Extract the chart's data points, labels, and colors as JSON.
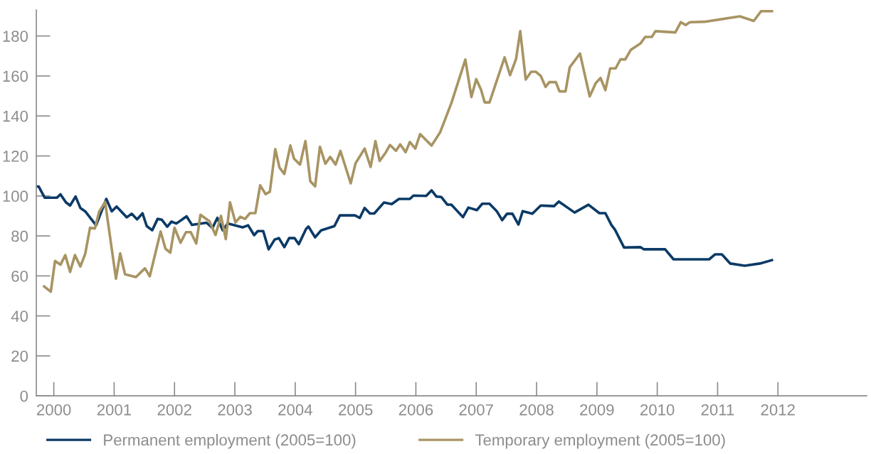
{
  "chart_data": {
    "type": "line",
    "xlim": [
      1999.71,
      2013.47
    ],
    "ylim": [
      0,
      193
    ],
    "xticks": [
      2000,
      2001,
      2002,
      2003,
      2004,
      2005,
      2006,
      2007,
      2008,
      2009,
      2010,
      2011,
      2012
    ],
    "yticks": [
      0,
      20,
      40,
      60,
      80,
      100,
      120,
      140,
      160,
      180
    ],
    "grid": false,
    "legend": "bottom",
    "marker": "none",
    "line_style": "solid",
    "series": [
      {
        "name": "Permanent employment (2005=100)",
        "color": "#0b3a66",
        "x": [
          1999.71,
          1999.75,
          1999.85,
          2000.05,
          2000.11,
          2000.2,
          2000.27,
          2000.36,
          2000.44,
          2000.52,
          2000.7,
          2000.87,
          2000.96,
          2001.04,
          2001.21,
          2001.29,
          2001.38,
          2001.47,
          2001.54,
          2001.63,
          2001.72,
          2001.79,
          2001.88,
          2001.95,
          2002.03,
          2002.2,
          2002.29,
          2002.53,
          2002.63,
          2002.71,
          2002.8,
          2002.88,
          2003.13,
          2003.22,
          2003.32,
          2003.38,
          2003.47,
          2003.56,
          2003.66,
          2003.73,
          2003.82,
          2003.9,
          2003.99,
          2004.06,
          2004.18,
          2004.22,
          2004.33,
          2004.43,
          2004.65,
          2004.74,
          2004.99,
          2005.07,
          2005.15,
          2005.24,
          2005.31,
          2005.47,
          2005.6,
          2005.72,
          2005.9,
          2005.96,
          2006.17,
          2006.26,
          2006.34,
          2006.42,
          2006.52,
          2006.59,
          2006.78,
          2006.87,
          2007.01,
          2007.1,
          2007.22,
          2007.34,
          2007.43,
          2007.51,
          2007.6,
          2007.7,
          2007.77,
          2007.93,
          2008.07,
          2008.29,
          2008.37,
          2008.63,
          2008.86,
          2009.04,
          2009.14,
          2009.24,
          2009.3,
          2009.45,
          2009.72,
          2009.78,
          2010.13,
          2010.27,
          2010.86,
          2010.96,
          2011.07,
          2011.21,
          2011.45,
          2011.7,
          2011.9
        ],
        "values": [
          104.7,
          104.7,
          99.1,
          99.1,
          100.8,
          96.8,
          95.2,
          99.7,
          94.0,
          92.3,
          85.3,
          98.5,
          92.3,
          94.7,
          89.3,
          91.1,
          88.3,
          91.3,
          84.9,
          82.8,
          88.5,
          88.1,
          84.6,
          87.2,
          86.2,
          89.8,
          85.5,
          86.6,
          84.0,
          89.0,
          82.8,
          86.2,
          84.3,
          85.3,
          80.4,
          82.4,
          82.4,
          73.3,
          78.2,
          78.9,
          74.4,
          78.9,
          78.9,
          75.9,
          83.5,
          84.7,
          79.3,
          82.8,
          84.9,
          90.3,
          90.3,
          89.0,
          94.0,
          91.2,
          91.2,
          96.7,
          95.9,
          98.5,
          98.5,
          100.2,
          100.0,
          102.8,
          99.7,
          99.5,
          95.7,
          95.6,
          89.4,
          94.2,
          92.9,
          96.1,
          96.1,
          92.4,
          87.9,
          91.1,
          91.1,
          85.7,
          92.4,
          91.1,
          95.2,
          94.9,
          97.2,
          91.7,
          95.6,
          91.4,
          91.4,
          85.5,
          83.1,
          74.2,
          74.4,
          73.3,
          73.3,
          68.3,
          68.3,
          70.8,
          70.8,
          66.2,
          65.1,
          66.2,
          67.9
        ]
      },
      {
        "name": "Temporary employment (2005=100)",
        "color": "#a89463",
        "x": [
          1999.84,
          1999.95,
          2000.02,
          2000.11,
          2000.19,
          2000.27,
          2000.35,
          2000.44,
          2000.52,
          2000.6,
          2000.68,
          2000.75,
          2000.85,
          2001.03,
          2001.1,
          2001.18,
          2001.36,
          2001.51,
          2001.59,
          2001.77,
          2001.85,
          2001.93,
          2002.0,
          2002.1,
          2002.19,
          2002.27,
          2002.36,
          2002.43,
          2002.58,
          2002.68,
          2002.77,
          2002.85,
          2002.92,
          2003.01,
          2003.09,
          2003.17,
          2003.25,
          2003.34,
          2003.42,
          2003.51,
          2003.58,
          2003.67,
          2003.74,
          2003.82,
          2003.92,
          2003.98,
          2004.08,
          2004.17,
          2004.25,
          2004.33,
          2004.41,
          2004.5,
          2004.58,
          2004.67,
          2004.75,
          2004.92,
          2005.0,
          2005.15,
          2005.25,
          2005.33,
          2005.4,
          2005.5,
          2005.57,
          2005.67,
          2005.74,
          2005.83,
          2005.9,
          2005.99,
          2006.07,
          2006.26,
          2006.4,
          2006.5,
          2006.59,
          2006.82,
          2006.92,
          2007.0,
          2007.08,
          2007.14,
          2007.22,
          2007.47,
          2007.56,
          2007.66,
          2007.73,
          2007.82,
          2007.91,
          2007.99,
          2008.07,
          2008.15,
          2008.21,
          2008.32,
          2008.38,
          2008.48,
          2008.55,
          2008.72,
          2008.88,
          2008.98,
          2009.06,
          2009.14,
          2009.22,
          2009.31,
          2009.39,
          2009.47,
          2009.56,
          2009.72,
          2009.8,
          2009.91,
          2009.97,
          2010.3,
          2010.39,
          2010.47,
          2010.54,
          2010.78,
          2011.37,
          2011.6,
          2011.72,
          2011.9
        ],
        "values": [
          54.7,
          52.1,
          67.5,
          65.6,
          70.4,
          62.0,
          70.4,
          64.7,
          71.0,
          84.1,
          83.7,
          92.0,
          97.0,
          58.6,
          71.3,
          60.8,
          59.4,
          63.8,
          59.8,
          82.2,
          73.6,
          71.6,
          84.1,
          76.6,
          81.9,
          81.9,
          76.2,
          90.6,
          87.3,
          80.5,
          90.0,
          78.4,
          96.8,
          86.7,
          89.6,
          88.5,
          91.4,
          91.4,
          105.3,
          100.9,
          102.1,
          123.4,
          114.2,
          111.0,
          125.2,
          118.7,
          115.7,
          127.4,
          107.4,
          104.8,
          124.6,
          116.1,
          119.5,
          115.7,
          122.5,
          106.3,
          116.3,
          123.7,
          114.5,
          127.4,
          117.5,
          121.7,
          125.5,
          122.6,
          125.8,
          121.9,
          127.0,
          123.7,
          130.9,
          125.2,
          131.7,
          139.5,
          146.6,
          168.2,
          149.5,
          158.4,
          153.1,
          146.8,
          146.8,
          169.3,
          160.4,
          168.5,
          182.4,
          158.2,
          162.1,
          162.1,
          160.0,
          154.5,
          156.9,
          156.9,
          152.3,
          152.3,
          164.4,
          171.2,
          149.8,
          156.4,
          159.0,
          152.9,
          163.8,
          163.8,
          168.3,
          168.3,
          173.0,
          176.2,
          179.5,
          179.5,
          182.4,
          181.8,
          186.9,
          185.5,
          186.9,
          187.1,
          189.8,
          187.5,
          192.4,
          192.4
        ]
      }
    ]
  }
}
